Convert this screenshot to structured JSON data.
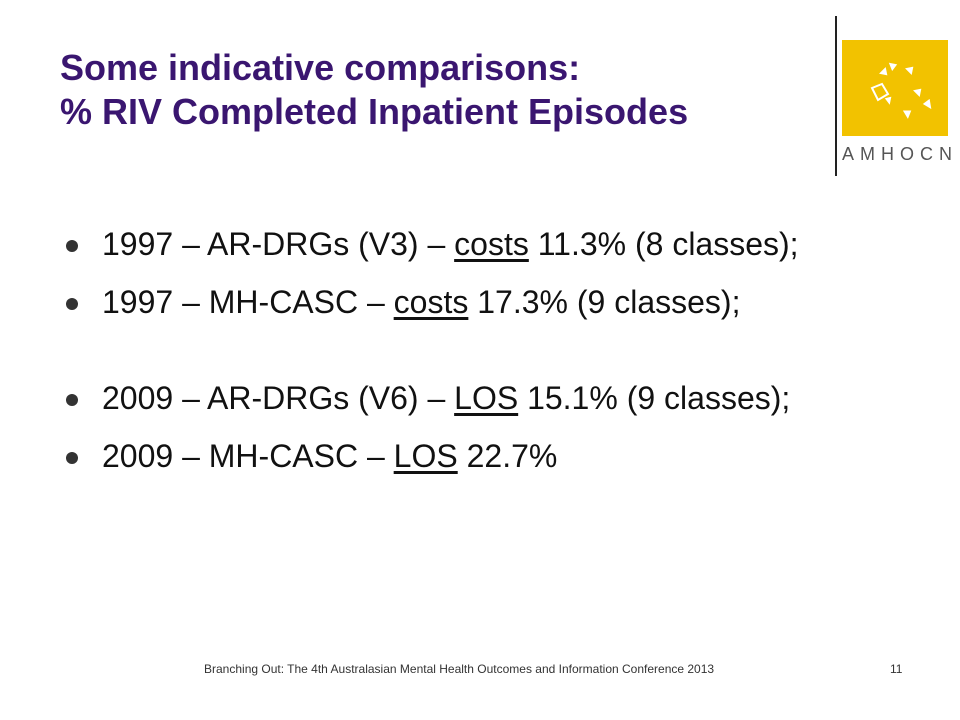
{
  "slide": {
    "title_line1": "Some indicative comparisons:",
    "title_line2": "% RIV Completed Inpatient Episodes",
    "bullets": [
      {
        "pre": "1997 – AR-DRGs (V3) – ",
        "underline": "costs",
        "post": " 11.3% (8 classes);"
      },
      {
        "pre": "1997 – MH-CASC – ",
        "underline": "costs",
        "post": " 17.3% (9 classes);"
      },
      {
        "pre": "2009 – AR-DRGs (V6) – ",
        "underline": "LOS",
        "post": " 15.1% (9 classes);"
      },
      {
        "pre": "2009 – MH-CASC – ",
        "underline": "LOS",
        "post": " 22.7%"
      }
    ],
    "footer": "Branching Out: The 4th Australasian Mental Health Outcomes and Information Conference 2013",
    "page_number": "11"
  },
  "logo": {
    "name": "AMHOCN",
    "icon": "arrows-logo-icon",
    "color": "#f2c200"
  },
  "colors": {
    "title": "#3a1670",
    "text": "#111111"
  }
}
